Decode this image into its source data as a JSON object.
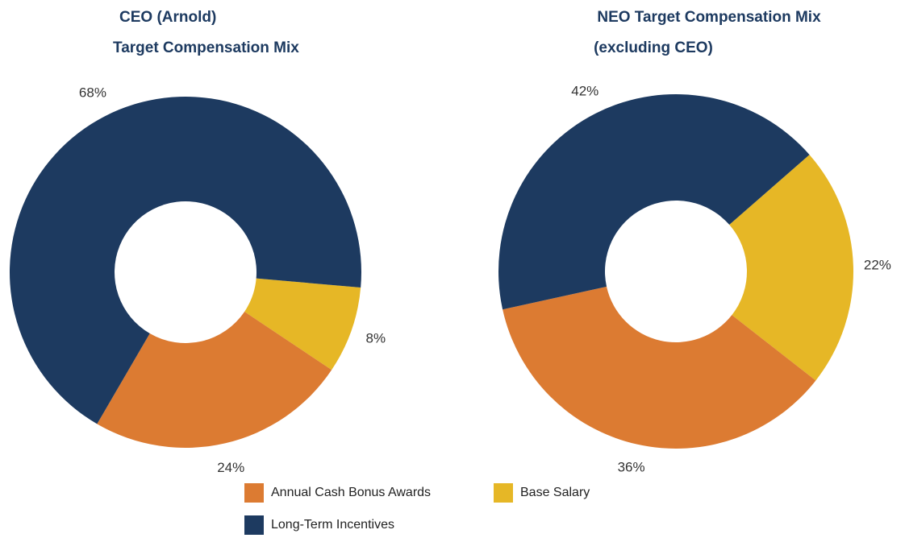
{
  "chart_data": [
    {
      "type": "pie",
      "title": [
        "CEO (Arnold)",
        "Target Compensation Mix"
      ],
      "categories": [
        "Base Salary",
        "Annual Cash Bonus Awards",
        "Long-Term Incentives"
      ],
      "values": [
        8,
        24,
        68
      ],
      "value_labels": [
        "8%",
        "24%",
        "68%"
      ],
      "colors": [
        "#e6b726",
        "#dc7b32",
        "#1d3a60"
      ]
    },
    {
      "type": "pie",
      "title": [
        "NEO Target Compensation Mix",
        "(excluding CEO)"
      ],
      "categories": [
        "Base Salary",
        "Annual Cash Bonus Awards",
        "Long-Term Incentives"
      ],
      "values": [
        22,
        36,
        42
      ],
      "value_labels": [
        "22%",
        "36%",
        "42%"
      ],
      "colors": [
        "#e6b726",
        "#dc7b32",
        "#1d3a60"
      ]
    }
  ]
}
